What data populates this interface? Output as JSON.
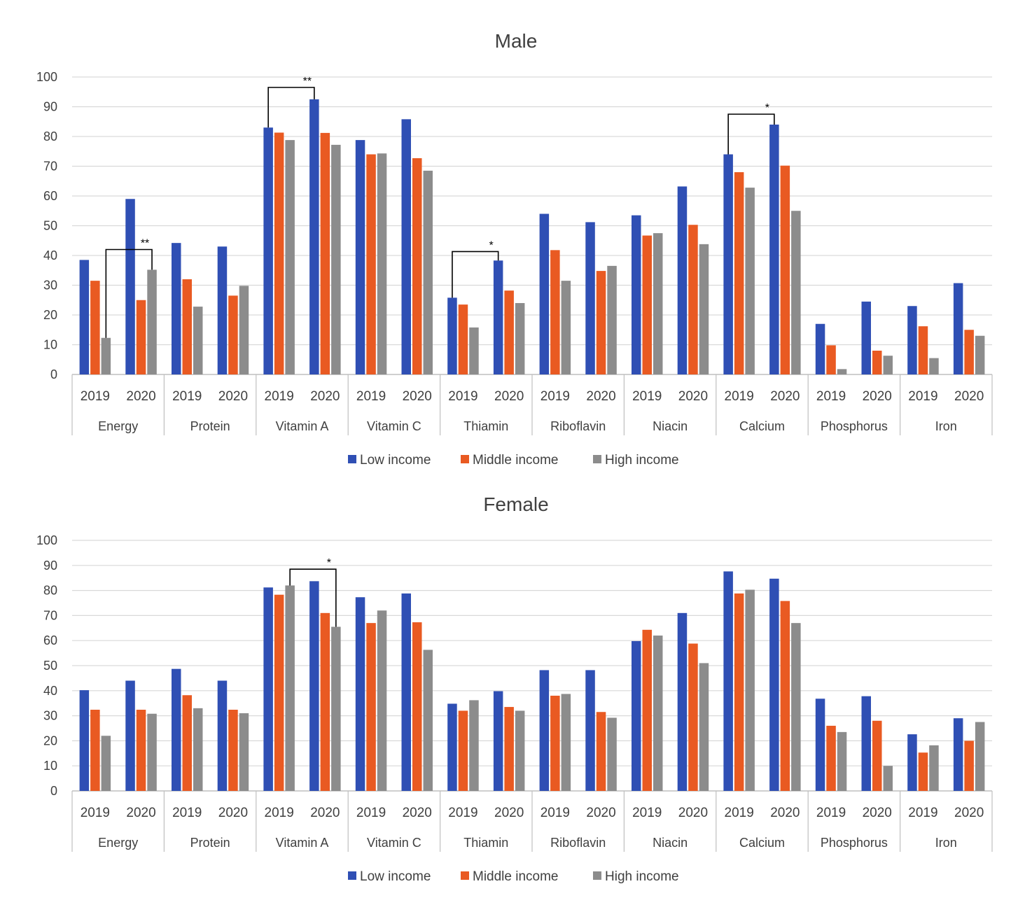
{
  "colors": {
    "low": "#2f4fb4",
    "middle": "#e95a22",
    "high": "#8c8c8c",
    "grid": "#d9d9d9",
    "axis": "#bfbfbf",
    "text": "#404040"
  },
  "legend": {
    "low": "Low income",
    "middle": "Middle income",
    "high": "High income"
  },
  "chart_data": [
    {
      "type": "bar",
      "title": "Male",
      "ylim": [
        0,
        100
      ],
      "yticks": [
        "0",
        "10",
        "20",
        "30",
        "40",
        "50",
        "60",
        "70",
        "80",
        "90",
        "100"
      ],
      "groups": [
        "Energy",
        "Protein",
        "Vitamin A",
        "Vitamin C",
        "Thiamin",
        "Riboflavin",
        "Niacin",
        "Calcium",
        "Phosphorus",
        "Iron"
      ],
      "years": [
        "2019",
        "2020"
      ],
      "series": [
        {
          "name": "Low income",
          "key": "low",
          "values": [
            [
              38.5,
              59
            ],
            [
              44.2,
              43
            ],
            [
              83,
              92.5
            ],
            [
              78.8,
              85.8
            ],
            [
              25.8,
              38.3
            ],
            [
              54,
              51.2
            ],
            [
              53.5,
              63.2
            ],
            [
              74,
              84
            ],
            [
              17,
              24.5
            ],
            [
              23,
              30.7
            ]
          ]
        },
        {
          "name": "Middle income",
          "key": "middle",
          "values": [
            [
              31.5,
              25
            ],
            [
              32,
              26.5
            ],
            [
              81.3,
              81.2
            ],
            [
              74,
              72.7
            ],
            [
              23.5,
              28.2
            ],
            [
              41.8,
              34.8
            ],
            [
              46.7,
              50.3
            ],
            [
              68,
              70.2
            ],
            [
              9.8,
              8
            ],
            [
              16.2,
              15
            ]
          ]
        },
        {
          "name": "High income",
          "key": "high",
          "values": [
            [
              12.3,
              35.2
            ],
            [
              22.8,
              29.8
            ],
            [
              78.8,
              77.2
            ],
            [
              74.3,
              68.5
            ],
            [
              15.8,
              24
            ],
            [
              31.5,
              36.5
            ],
            [
              47.5,
              43.8
            ],
            [
              62.8,
              55
            ],
            [
              1.8,
              6.3
            ],
            [
              5.5,
              13
            ]
          ]
        }
      ],
      "significance": [
        {
          "label": "**",
          "group": 0,
          "from": {
            "year": 0,
            "series": 2
          },
          "to": {
            "year": 1,
            "series": 2
          },
          "top": 42
        },
        {
          "label": "**",
          "group": 2,
          "from": {
            "year": 0,
            "series": 0
          },
          "to": {
            "year": 1,
            "series": 0
          },
          "top": 96.5
        },
        {
          "label": "*",
          "group": 4,
          "from": {
            "year": 0,
            "series": 0
          },
          "to": {
            "year": 1,
            "series": 0
          },
          "top": 41.3
        },
        {
          "label": "*",
          "group": 7,
          "from": {
            "year": 0,
            "series": 0
          },
          "to": {
            "year": 1,
            "series": 0
          },
          "top": 87.5
        }
      ]
    },
    {
      "type": "bar",
      "title": "Female",
      "ylim": [
        0,
        100
      ],
      "yticks": [
        "0",
        "10",
        "20",
        "30",
        "40",
        "50",
        "60",
        "70",
        "80",
        "90",
        "100"
      ],
      "groups": [
        "Energy",
        "Protein",
        "Vitamin A",
        "Vitamin C",
        "Thiamin",
        "Riboflavin",
        "Niacin",
        "Calcium",
        "Phosphorus",
        "Iron"
      ],
      "years": [
        "2019",
        "2020"
      ],
      "series": [
        {
          "name": "Low income",
          "key": "low",
          "values": [
            [
              40.2,
              44
            ],
            [
              48.7,
              44
            ],
            [
              81.2,
              83.7
            ],
            [
              77.3,
              78.8
            ],
            [
              34.8,
              39.8
            ],
            [
              48.2,
              48.2
            ],
            [
              59.8,
              71
            ],
            [
              87.6,
              84.7
            ],
            [
              36.8,
              37.8
            ],
            [
              22.6,
              29
            ]
          ]
        },
        {
          "name": "Middle income",
          "key": "middle",
          "values": [
            [
              32.4,
              32.4
            ],
            [
              38.2,
              32.4
            ],
            [
              78.3,
              71
            ],
            [
              67,
              67.3
            ],
            [
              32,
              33.5
            ],
            [
              38,
              31.5
            ],
            [
              64.3,
              58.8
            ],
            [
              78.8,
              75.8
            ],
            [
              26,
              28
            ],
            [
              15.3,
              20
            ]
          ]
        },
        {
          "name": "High income",
          "key": "high",
          "values": [
            [
              22,
              30.8
            ],
            [
              33,
              31
            ],
            [
              82,
              65.5
            ],
            [
              72,
              56.3
            ],
            [
              36.2,
              32
            ],
            [
              38.7,
              29.2
            ],
            [
              62,
              51
            ],
            [
              80.3,
              67
            ],
            [
              23.5,
              10
            ],
            [
              18.2,
              27.5
            ]
          ]
        }
      ],
      "significance": [
        {
          "label": "*",
          "group": 2,
          "from": {
            "year": 0,
            "series": 2
          },
          "to": {
            "year": 1,
            "series": 2
          },
          "top": 88.5
        }
      ]
    }
  ]
}
